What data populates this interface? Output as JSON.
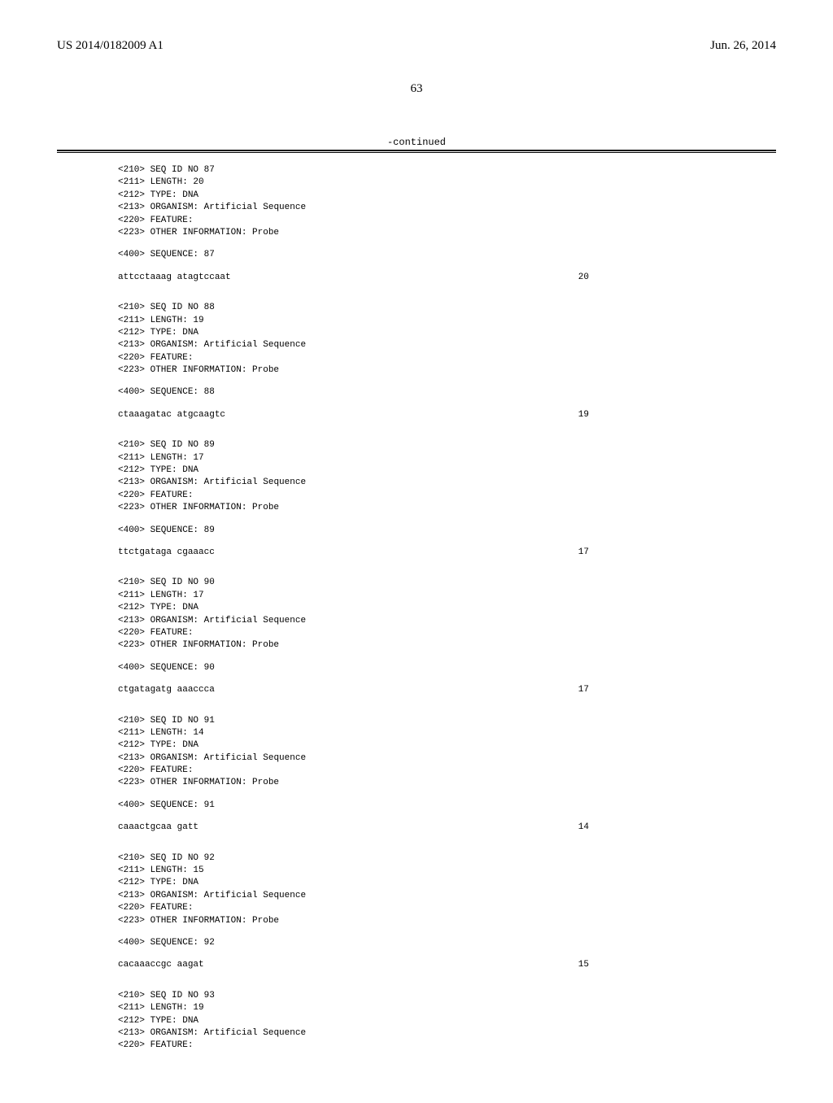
{
  "header": {
    "pub_number": "US 2014/0182009 A1",
    "pub_date": "Jun. 26, 2014"
  },
  "page_number": "63",
  "continued_label": "-continued",
  "sequences": [
    {
      "id": "87",
      "length": "20",
      "type": "DNA",
      "organism": "Artificial Sequence",
      "feature": "",
      "other_info": "Probe",
      "seq": "attcctaaag atagtccaat",
      "seq_len": "20"
    },
    {
      "id": "88",
      "length": "19",
      "type": "DNA",
      "organism": "Artificial Sequence",
      "feature": "",
      "other_info": "Probe",
      "seq": "ctaaagatac atgcaagtc",
      "seq_len": "19"
    },
    {
      "id": "89",
      "length": "17",
      "type": "DNA",
      "organism": "Artificial Sequence",
      "feature": "",
      "other_info": "Probe",
      "seq": "ttctgataga cgaaacc",
      "seq_len": "17"
    },
    {
      "id": "90",
      "length": "17",
      "type": "DNA",
      "organism": "Artificial Sequence",
      "feature": "",
      "other_info": "Probe",
      "seq": "ctgatagatg aaaccca",
      "seq_len": "17"
    },
    {
      "id": "91",
      "length": "14",
      "type": "DNA",
      "organism": "Artificial Sequence",
      "feature": "",
      "other_info": "Probe",
      "seq": "caaactgcaa gatt",
      "seq_len": "14"
    },
    {
      "id": "92",
      "length": "15",
      "type": "DNA",
      "organism": "Artificial Sequence",
      "feature": "",
      "other_info": "Probe",
      "seq": "cacaaaccgc aagat",
      "seq_len": "15"
    },
    {
      "id": "93",
      "length": "19",
      "type": "DNA",
      "organism": "Artificial Sequence",
      "feature": "",
      "other_info": null,
      "seq": null,
      "seq_len": null
    }
  ],
  "labels": {
    "seq_id": "<210> SEQ ID NO ",
    "length": "<211> LENGTH: ",
    "type": "<212> TYPE: ",
    "organism": "<213> ORGANISM: ",
    "feature": "<220> FEATURE:",
    "other_info": "<223> OTHER INFORMATION: ",
    "sequence": "<400> SEQUENCE: "
  }
}
